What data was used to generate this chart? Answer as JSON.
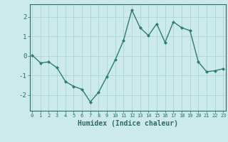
{
  "x": [
    0,
    1,
    2,
    3,
    4,
    5,
    6,
    7,
    8,
    9,
    10,
    11,
    12,
    13,
    14,
    15,
    16,
    17,
    18,
    19,
    20,
    21,
    22,
    23
  ],
  "y": [
    0.05,
    -0.35,
    -0.3,
    -0.6,
    -1.3,
    -1.55,
    -1.7,
    -2.35,
    -1.85,
    -1.05,
    -0.2,
    0.8,
    2.35,
    1.45,
    1.05,
    1.65,
    0.7,
    1.75,
    1.45,
    1.3,
    -0.3,
    -0.8,
    -0.75,
    -0.65
  ],
  "line_color": "#2e7d6e",
  "marker": "D",
  "markersize": 2.0,
  "linewidth": 1.0,
  "bg_color": "#cceaea",
  "grid_color": "#b0d8d8",
  "tick_color": "#2e6b5e",
  "label_color": "#2e6b5e",
  "xlabel": "Humidex (Indice chaleur)",
  "xlabel_fontsize": 7,
  "ytick_labels": [
    "-2",
    "-1",
    "0",
    "1",
    "2"
  ],
  "ytick_values": [
    -2,
    -1,
    0,
    1,
    2
  ],
  "ylim": [
    -2.8,
    2.65
  ],
  "xlim": [
    -0.3,
    23.3
  ]
}
